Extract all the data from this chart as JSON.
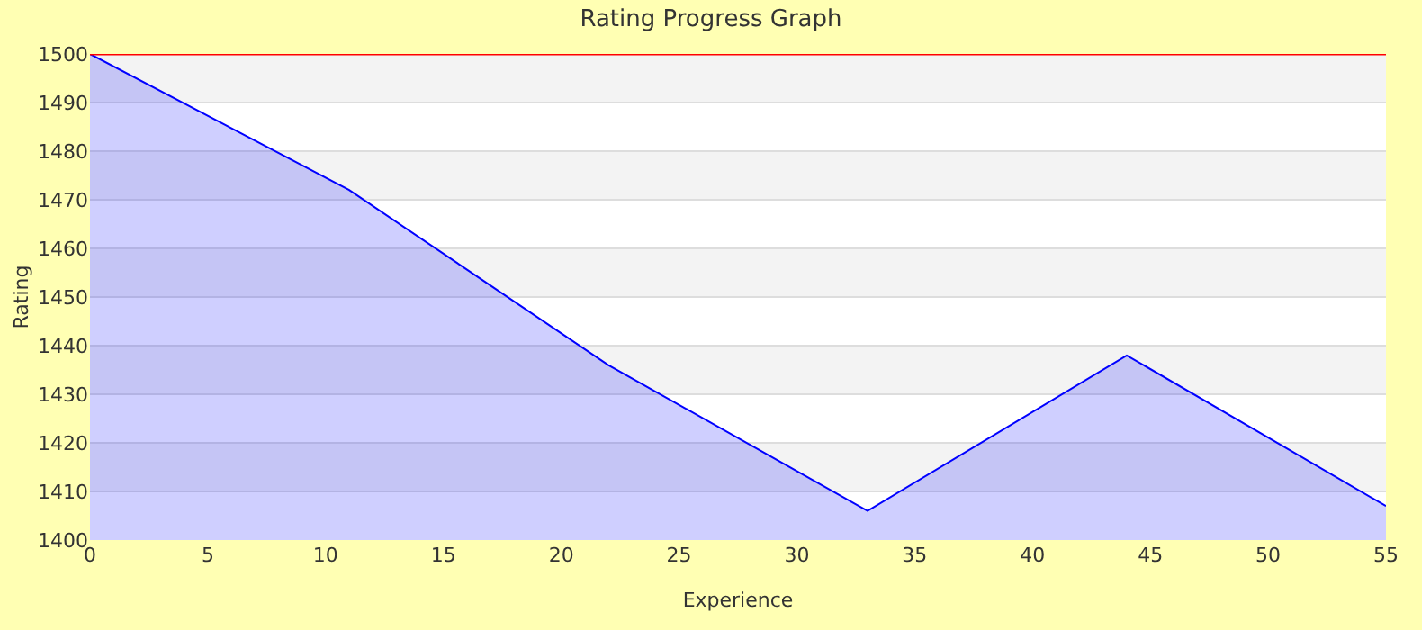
{
  "chart_data": {
    "type": "area",
    "title": "Rating Progress Graph",
    "xlabel": "Experience",
    "ylabel": "Rating",
    "x": [
      0,
      11,
      22,
      33,
      44,
      55
    ],
    "series": [
      {
        "color": "#0000ff",
        "values": [
          1500,
          1472,
          1436,
          1406,
          1438,
          1407
        ]
      }
    ],
    "xlim": [
      0,
      55
    ],
    "xticks": [
      0,
      5,
      10,
      15,
      20,
      25,
      30,
      35,
      40,
      45,
      50,
      55
    ],
    "ylim": [
      1400,
      1500
    ],
    "yticks": [
      1400,
      1410,
      1420,
      1430,
      1440,
      1450,
      1460,
      1470,
      1480,
      1490,
      1500
    ],
    "ref_lines": [
      {
        "axis": "y",
        "value": 1500,
        "color": "#ff0000"
      }
    ],
    "grid": "y",
    "marker": "none",
    "line_style": "solid"
  }
}
